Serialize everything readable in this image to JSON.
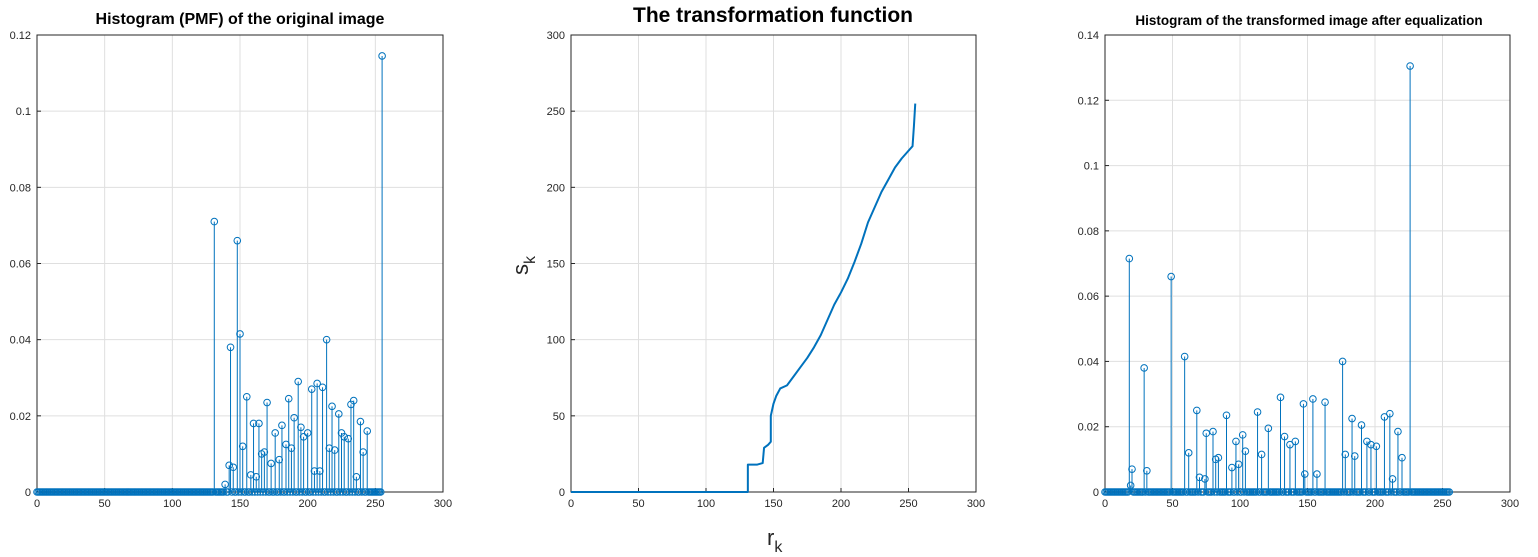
{
  "chart_data": [
    {
      "type": "stem",
      "title": "Histogram (PMF) of the original image",
      "xlabel": "",
      "ylabel": "",
      "xlim": [
        0,
        300
      ],
      "ylim": [
        0,
        0.12
      ],
      "xticks": [
        0,
        50,
        100,
        150,
        200,
        250,
        300
      ],
      "yticks": [
        0,
        0.02,
        0.04,
        0.06,
        0.08,
        0.1,
        0.12
      ],
      "grid": true,
      "color": "#0072BD",
      "x_range": [
        0,
        255
      ],
      "baseline_value": 0,
      "points": [
        [
          131,
          0.071
        ],
        [
          139,
          0.002
        ],
        [
          142,
          0.007
        ],
        [
          143,
          0.038
        ],
        [
          145,
          0.0065
        ],
        [
          148,
          0.066
        ],
        [
          150,
          0.0415
        ],
        [
          152,
          0.012
        ],
        [
          155,
          0.025
        ],
        [
          158,
          0.0045
        ],
        [
          160,
          0.018
        ],
        [
          162,
          0.004
        ],
        [
          164,
          0.018
        ],
        [
          166,
          0.01
        ],
        [
          168,
          0.0105
        ],
        [
          170,
          0.0235
        ],
        [
          173,
          0.0075
        ],
        [
          176,
          0.0155
        ],
        [
          179,
          0.0085
        ],
        [
          181,
          0.0175
        ],
        [
          184,
          0.0125
        ],
        [
          186,
          0.0245
        ],
        [
          188,
          0.0115
        ],
        [
          190,
          0.0195
        ],
        [
          193,
          0.029
        ],
        [
          195,
          0.017
        ],
        [
          197,
          0.0145
        ],
        [
          200,
          0.0155
        ],
        [
          203,
          0.027
        ],
        [
          205,
          0.0055
        ],
        [
          207,
          0.0285
        ],
        [
          209,
          0.0055
        ],
        [
          211,
          0.0275
        ],
        [
          214,
          0.04
        ],
        [
          216,
          0.0115
        ],
        [
          218,
          0.0225
        ],
        [
          220,
          0.011
        ],
        [
          223,
          0.0205
        ],
        [
          225,
          0.0155
        ],
        [
          227,
          0.0145
        ],
        [
          230,
          0.014
        ],
        [
          232,
          0.023
        ],
        [
          234,
          0.024
        ],
        [
          236,
          0.004
        ],
        [
          239,
          0.0185
        ],
        [
          241,
          0.0105
        ],
        [
          244,
          0.016
        ],
        [
          255,
          0.1145
        ]
      ]
    },
    {
      "type": "line",
      "title": "The transformation function",
      "xlabel": "r",
      "xlabel_sub": "k",
      "ylabel": "s",
      "ylabel_sub": "k",
      "xlim": [
        0,
        300
      ],
      "ylim": [
        0,
        300
      ],
      "xticks": [
        0,
        50,
        100,
        150,
        200,
        250,
        300
      ],
      "yticks": [
        0,
        50,
        100,
        150,
        200,
        250,
        300
      ],
      "grid": true,
      "color": "#0072BD",
      "points": [
        [
          0,
          0
        ],
        [
          131,
          0
        ],
        [
          131,
          18
        ],
        [
          138,
          18
        ],
        [
          142,
          19
        ],
        [
          143,
          29
        ],
        [
          146,
          31
        ],
        [
          148,
          33
        ],
        [
          148,
          50
        ],
        [
          150,
          58
        ],
        [
          152,
          63
        ],
        [
          155,
          68
        ],
        [
          160,
          70
        ],
        [
          165,
          76
        ],
        [
          170,
          82
        ],
        [
          175,
          88
        ],
        [
          180,
          95
        ],
        [
          185,
          103
        ],
        [
          190,
          113
        ],
        [
          195,
          123
        ],
        [
          200,
          131
        ],
        [
          205,
          140
        ],
        [
          210,
          151
        ],
        [
          215,
          163
        ],
        [
          220,
          177
        ],
        [
          225,
          187
        ],
        [
          230,
          197
        ],
        [
          235,
          205
        ],
        [
          240,
          213
        ],
        [
          245,
          219
        ],
        [
          250,
          224
        ],
        [
          253,
          227
        ],
        [
          254,
          240
        ],
        [
          255,
          255
        ]
      ]
    },
    {
      "type": "stem",
      "title": "Histogram of the transformed image after equalization",
      "xlabel": "",
      "ylabel": "",
      "xlim": [
        0,
        300
      ],
      "ylim": [
        0,
        0.14
      ],
      "xticks": [
        0,
        50,
        100,
        150,
        200,
        250,
        300
      ],
      "yticks": [
        0,
        0.02,
        0.04,
        0.06,
        0.08,
        0.1,
        0.12,
        0.14
      ],
      "grid": true,
      "color": "#0072BD",
      "x_range": [
        0,
        255
      ],
      "baseline_value": 0,
      "points": [
        [
          18,
          0.0715
        ],
        [
          19,
          0.002
        ],
        [
          20,
          0.007
        ],
        [
          29,
          0.038
        ],
        [
          31,
          0.0065
        ],
        [
          49,
          0.066
        ],
        [
          59,
          0.0415
        ],
        [
          62,
          0.012
        ],
        [
          68,
          0.025
        ],
        [
          70,
          0.0045
        ],
        [
          74,
          0.004
        ],
        [
          75,
          0.018
        ],
        [
          80,
          0.0185
        ],
        [
          82,
          0.01
        ],
        [
          84,
          0.0105
        ],
        [
          90,
          0.0235
        ],
        [
          94,
          0.0075
        ],
        [
          97,
          0.0155
        ],
        [
          99,
          0.0085
        ],
        [
          102,
          0.0175
        ],
        [
          104,
          0.0125
        ],
        [
          113,
          0.0245
        ],
        [
          116,
          0.0115
        ],
        [
          121,
          0.0195
        ],
        [
          130,
          0.029
        ],
        [
          133,
          0.017
        ],
        [
          137,
          0.0145
        ],
        [
          141,
          0.0155
        ],
        [
          147,
          0.027
        ],
        [
          148,
          0.0055
        ],
        [
          154,
          0.0285
        ],
        [
          157,
          0.0055
        ],
        [
          163,
          0.0275
        ],
        [
          176,
          0.04
        ],
        [
          178,
          0.0115
        ],
        [
          183,
          0.0225
        ],
        [
          185,
          0.011
        ],
        [
          190,
          0.0205
        ],
        [
          194,
          0.0155
        ],
        [
          197,
          0.0145
        ],
        [
          201,
          0.014
        ],
        [
          207,
          0.023
        ],
        [
          211,
          0.024
        ],
        [
          213,
          0.004
        ],
        [
          217,
          0.0185
        ],
        [
          220,
          0.0105
        ],
        [
          226,
          0.1305
        ]
      ]
    }
  ]
}
